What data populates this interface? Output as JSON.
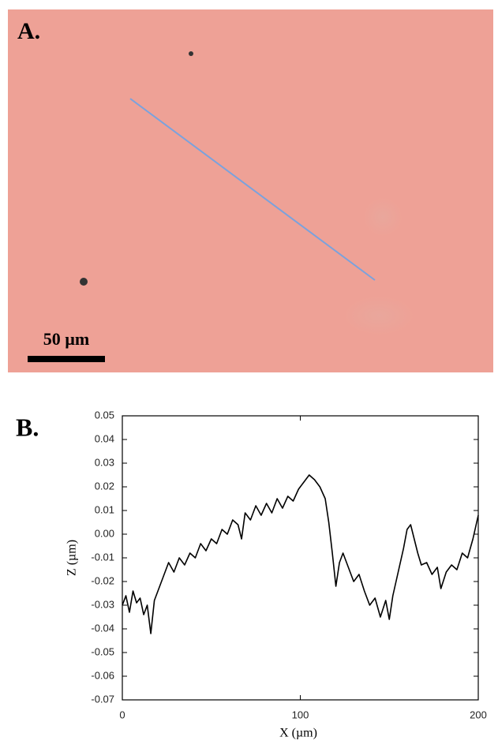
{
  "panel_a": {
    "label": "A.",
    "scale_bar": "50 µm"
  },
  "chart_data": {
    "type": "line",
    "panel_label": "B.",
    "x_label": "X (µm)",
    "y_label": "Z (µm)",
    "xlim": [
      0,
      200
    ],
    "ylim": [
      -0.07,
      0.05
    ],
    "xticks": [
      0,
      100,
      200
    ],
    "yticks": [
      0.05,
      0.04,
      0.03,
      0.02,
      0.01,
      {
        "value": 0,
        "label": "0.00"
      },
      -0.01,
      -0.02,
      -0.03,
      -0.04,
      -0.05,
      -0.06,
      -0.07
    ],
    "x": [
      0,
      2,
      4,
      6,
      8,
      10,
      12,
      14,
      16,
      18,
      20,
      23,
      26,
      29,
      32,
      35,
      38,
      41,
      44,
      47,
      50,
      53,
      56,
      59,
      62,
      65,
      67,
      69,
      72,
      75,
      78,
      81,
      84,
      87,
      90,
      93,
      96,
      99,
      102,
      105,
      108,
      111,
      114,
      116,
      118,
      120,
      122,
      124,
      127,
      130,
      133,
      136,
      139,
      142,
      145,
      148,
      150,
      152,
      155,
      158,
      160,
      162,
      164,
      166,
      168,
      171,
      174,
      177,
      179,
      182,
      185,
      188,
      191,
      194,
      197,
      200
    ],
    "series": [
      {
        "name": "Z",
        "color": "#000000",
        "values": [
          -0.03,
          -0.026,
          -0.033,
          -0.024,
          -0.029,
          -0.027,
          -0.034,
          -0.03,
          -0.042,
          -0.028,
          -0.024,
          -0.018,
          -0.012,
          -0.016,
          -0.01,
          -0.013,
          -0.008,
          -0.01,
          -0.004,
          -0.007,
          -0.002,
          -0.004,
          0.002,
          0.0,
          0.006,
          0.004,
          -0.002,
          0.009,
          0.006,
          0.012,
          0.008,
          0.013,
          0.009,
          0.015,
          0.011,
          0.016,
          0.014,
          0.019,
          0.022,
          0.025,
          0.023,
          0.02,
          0.015,
          0.005,
          -0.008,
          -0.022,
          -0.012,
          -0.008,
          -0.014,
          -0.02,
          -0.017,
          -0.024,
          -0.03,
          -0.027,
          -0.035,
          -0.028,
          -0.036,
          -0.026,
          -0.016,
          -0.006,
          0.002,
          0.004,
          -0.002,
          -0.008,
          -0.013,
          -0.012,
          -0.017,
          -0.014,
          -0.023,
          -0.016,
          -0.013,
          -0.015,
          -0.008,
          -0.01,
          -0.002,
          0.008
        ]
      }
    ]
  }
}
